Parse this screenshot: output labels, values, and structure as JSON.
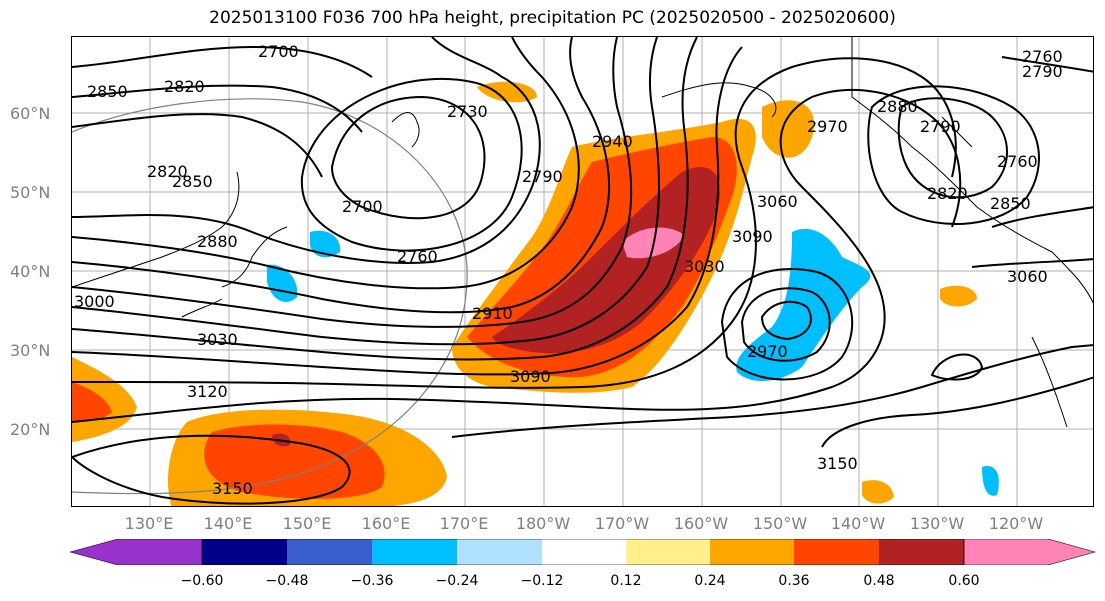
{
  "title": "2025013100 F036 700 hPa height, precipitation PC (2025020500 - 2025020600)",
  "lat_labels": [
    "60°N",
    "50°N",
    "40°N",
    "30°N",
    "20°N"
  ],
  "lon_labels": [
    "130°E",
    "140°E",
    "150°E",
    "160°E",
    "170°E",
    "180°W",
    "170°W",
    "160°W",
    "150°W",
    "140°W",
    "130°W",
    "120°W"
  ],
  "contour_labels": [
    "2700",
    "2820",
    "2850",
    "2730",
    "2940",
    "2880",
    "2790",
    "2970",
    "2820",
    "2850",
    "2700",
    "2790",
    "3060",
    "2760",
    "2880",
    "2760",
    "3090",
    "2820",
    "2850",
    "3030",
    "3060",
    "2910",
    "3000",
    "3030",
    "2970",
    "3090",
    "3120",
    "3150",
    "3150",
    "2760",
    "2790"
  ],
  "colorbar": {
    "ticks": [
      "−0.60",
      "−0.48",
      "−0.36",
      "−0.24",
      "−0.12",
      "0.12",
      "0.24",
      "0.36",
      "0.48",
      "0.60"
    ],
    "colors": [
      "#9932cc",
      "#00008b",
      "#3a5fcd",
      "#00bfff",
      "#b0e2ff",
      "#ffffff",
      "#fff08c",
      "#ffa500",
      "#ff4500",
      "#b22222",
      "#ff83b4",
      "#ff83b4"
    ],
    "extend": "both"
  },
  "colors": {
    "negative_strong": "#00bfff",
    "positive_mid": "#ffa500",
    "positive_high": "#ff4500",
    "positive_higher": "#b22222",
    "positive_max": "#ff83b4"
  }
}
